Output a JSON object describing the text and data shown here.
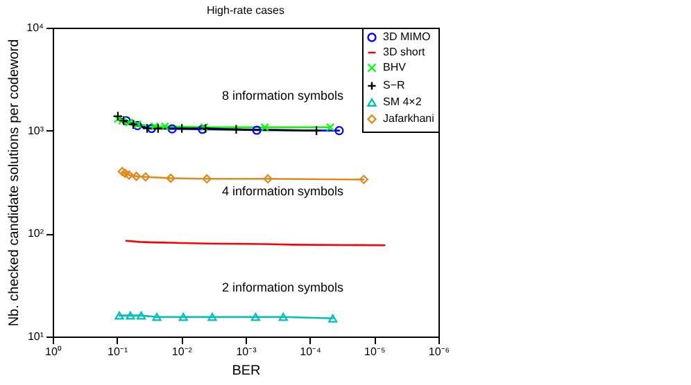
{
  "chart_data": {
    "type": "line",
    "title": "High-rate cases",
    "xlabel": "BER",
    "ylabel": "Nb. checked candidate solutions per codeword",
    "log": "xy",
    "grid": false,
    "legend": "top right",
    "xlim": [
      1,
      1e-06
    ],
    "xticks": [
      {
        "value": 1,
        "label": "10⁰"
      },
      {
        "value": 0.1,
        "label": "10⁻¹"
      },
      {
        "value": 0.01,
        "label": "10⁻²"
      },
      {
        "value": 0.001,
        "label": "10⁻³"
      },
      {
        "value": 0.0001,
        "label": "10⁻⁴"
      },
      {
        "value": 1e-05,
        "label": "10⁻⁵"
      },
      {
        "value": 1e-06,
        "label": "10⁻⁶"
      }
    ],
    "ylim": [
      10,
      10000
    ],
    "yticks": [
      {
        "value": 10,
        "label": "10¹"
      },
      {
        "value": 100,
        "label": "10²"
      },
      {
        "value": 1000,
        "label": "10³"
      },
      {
        "value": 10000,
        "label": "10⁴"
      }
    ],
    "series": [
      {
        "name": "3D MIMO",
        "color": "#0000ff",
        "marker": "circle",
        "x": [
          0.072,
          0.048,
          0.029,
          0.0139,
          0.0047,
          0.00067,
          3.5e-05
        ],
        "values": [
          1250,
          1120,
          1050,
          1040,
          1030,
          1010,
          1000
        ]
      },
      {
        "name": "3D short",
        "color": "#ff0000",
        "marker": "none",
        "x": [
          0.072,
          0.044,
          0.026,
          0.0098,
          0.0036,
          0.0005,
          0.00018,
          6.9e-06
        ],
        "values": [
          85,
          83,
          82,
          81,
          80,
          79,
          78,
          77
        ]
      },
      {
        "name": "BHV",
        "color": "#00ff00",
        "marker": "x",
        "x": [
          0.097,
          0.083,
          0.065,
          0.048,
          0.026,
          0.018,
          0.0044,
          0.0005,
          4.8e-05
        ],
        "values": [
          1300,
          1250,
          1200,
          1150,
          1100,
          1100,
          1080,
          1080,
          1080
        ]
      },
      {
        "name": "S−R",
        "color": "#000000",
        "marker": "cross",
        "x": [
          0.097,
          0.079,
          0.056,
          0.034,
          0.023,
          0.0098,
          0.0042,
          0.0014,
          7.9e-05
        ],
        "values": [
          1380,
          1250,
          1150,
          1050,
          1050,
          1050,
          1050,
          1030,
          1000
        ]
      },
      {
        "name": "SM 4×2",
        "color": "#00bfbf",
        "marker": "triangle",
        "x": [
          0.092,
          0.062,
          0.042,
          0.024,
          0.0093,
          0.0033,
          0.0007,
          0.00026,
          4.4e-05
        ],
        "values": [
          16,
          16,
          16,
          15.5,
          15.5,
          15.5,
          15.5,
          15.5,
          15
        ]
      },
      {
        "name": "Jafarkhani",
        "color": "#e08a1e",
        "marker": "diamond",
        "x": [
          0.083,
          0.075,
          0.065,
          0.05,
          0.036,
          0.0146,
          0.004,
          0.00045,
          1.45e-05
        ],
        "values": [
          400,
          385,
          370,
          360,
          355,
          345,
          340,
          340,
          335
        ]
      }
    ],
    "annotations": [
      "8 information symbols",
      "4 information symbols",
      "2 information symbols"
    ]
  }
}
